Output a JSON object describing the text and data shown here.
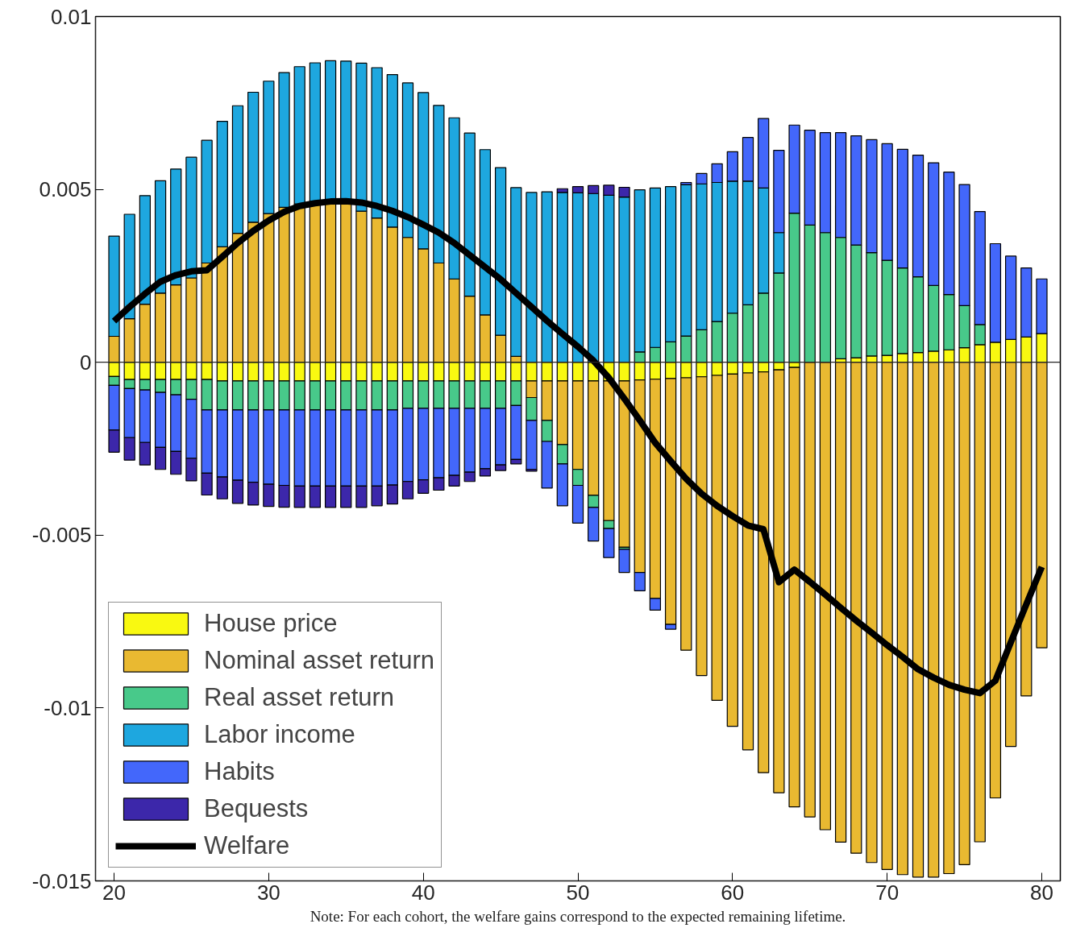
{
  "chart_data": {
    "type": "bar",
    "stacked": true,
    "x": [
      20,
      21,
      22,
      23,
      24,
      25,
      26,
      27,
      28,
      29,
      30,
      31,
      32,
      33,
      34,
      35,
      36,
      37,
      38,
      39,
      40,
      41,
      42,
      43,
      44,
      45,
      46,
      47,
      48,
      49,
      50,
      51,
      52,
      53,
      54,
      55,
      56,
      57,
      58,
      59,
      60,
      61,
      62,
      63,
      64,
      65,
      66,
      67,
      68,
      69,
      70,
      71,
      72,
      73,
      74,
      75,
      76,
      77,
      78,
      79,
      80
    ],
    "xlim": [
      18.8,
      81.2
    ],
    "xticks": [
      20,
      30,
      40,
      50,
      60,
      70,
      80
    ],
    "ylim": [
      -0.015,
      0.01
    ],
    "yticks": [
      -0.015,
      -0.01,
      -0.005,
      0,
      0.005,
      0.01
    ],
    "grid": false,
    "legend": "bottom left",
    "ref_lines": [
      {
        "axis": "y",
        "value": 0,
        "color": "#262626"
      }
    ],
    "annotations": [
      "Note: For each cohort, the welfare gains correspond to the expected remaining lifetime."
    ],
    "series": [
      {
        "name": "House price",
        "color": "#f9f911",
        "values": [
          -0.00041,
          -0.0005,
          -0.0005,
          -0.0005,
          -0.0005,
          -0.0005,
          -0.0005,
          -0.00054,
          -0.00054,
          -0.00054,
          -0.00054,
          -0.00054,
          -0.00054,
          -0.00054,
          -0.00054,
          -0.00054,
          -0.00054,
          -0.00054,
          -0.00054,
          -0.00054,
          -0.00054,
          -0.00054,
          -0.00054,
          -0.00054,
          -0.00054,
          -0.00054,
          -0.00054,
          -0.00054,
          -0.00054,
          -0.00054,
          -0.00054,
          -0.00054,
          -0.00054,
          -0.00054,
          -0.00051,
          -0.00049,
          -0.00047,
          -0.00045,
          -0.00042,
          -0.00038,
          -0.00034,
          -0.00031,
          -0.00028,
          -0.00022,
          -0.00015,
          null,
          null,
          0.0001,
          0.00013,
          0.00018,
          0.0002,
          0.00025,
          0.00028,
          0.00032,
          0.00036,
          0.00042,
          0.00051,
          0.00058,
          0.00066,
          0.00073,
          0.00083
        ]
      },
      {
        "name": "Nominal asset return",
        "color": "#e9b931",
        "values": [
          0.00075,
          0.00126,
          0.00168,
          0.002,
          0.00224,
          0.00244,
          0.00287,
          0.00334,
          0.00373,
          0.00405,
          0.0043,
          0.00448,
          0.00458,
          0.0046,
          0.00462,
          0.0046,
          0.00437,
          0.00417,
          0.00391,
          0.00361,
          0.00328,
          0.00287,
          0.00241,
          0.00191,
          0.00137,
          0.00078,
          0.00017,
          -0.00048,
          -0.00114,
          -0.00184,
          -0.00256,
          -0.00331,
          -0.00404,
          -0.00481,
          -0.00557,
          -0.00634,
          -0.00711,
          -0.00788,
          -0.00864,
          -0.0094,
          -0.01019,
          -0.0109,
          -0.01159,
          -0.01223,
          -0.01271,
          -0.01315,
          -0.01352,
          -0.01388,
          -0.0142,
          -0.01447,
          -0.01467,
          -0.01482,
          -0.01489,
          -0.01489,
          -0.01479,
          -0.01453,
          -0.01387,
          -0.0126,
          -0.01111,
          -0.00965,
          -0.00826
        ]
      },
      {
        "name": "Real asset return",
        "color": "#48c98a",
        "values": [
          -0.00026,
          -0.00026,
          -0.0003,
          -0.00037,
          -0.00044,
          -0.00057,
          -0.00088,
          -0.00084,
          -0.00084,
          -0.00084,
          -0.00084,
          -0.00084,
          -0.00084,
          -0.00084,
          -0.00084,
          -0.00084,
          -0.00084,
          -0.00084,
          -0.00084,
          -0.00079,
          -0.00079,
          -0.00079,
          -0.00079,
          -0.00079,
          -0.00079,
          -0.00079,
          -0.00071,
          -0.00066,
          -0.00061,
          -0.00056,
          -0.00046,
          -0.00035,
          -0.00023,
          -6e-05,
          0.0003,
          0.00043,
          0.00059,
          0.00076,
          0.00094,
          0.00118,
          0.00142,
          0.00166,
          0.002,
          0.00258,
          0.00431,
          0.00397,
          0.00375,
          0.00351,
          0.00326,
          0.00299,
          0.00275,
          0.00248,
          0.00219,
          0.0019,
          0.0016,
          0.00122,
          0.00058,
          0,
          0,
          0,
          0
        ]
      },
      {
        "name": "Labor income",
        "color": "#1ea7df",
        "values": [
          0.0029,
          0.00302,
          0.00314,
          0.00325,
          0.00335,
          0.00349,
          0.00355,
          0.00363,
          0.00369,
          0.00376,
          0.00383,
          0.0039,
          0.00397,
          0.00406,
          0.0041,
          0.00411,
          0.00428,
          0.00435,
          0.00441,
          0.00447,
          0.00452,
          0.00456,
          0.00466,
          0.00472,
          0.00478,
          0.00485,
          0.00488,
          0.00491,
          0.00493,
          0.00491,
          0.0049,
          0.00488,
          0.00483,
          0.00478,
          0.00469,
          0.00461,
          0.00449,
          0.00438,
          0.00422,
          0.00402,
          0.00382,
          0.00358,
          0.00304,
          0.00117,
          0,
          0,
          0,
          0,
          0,
          0,
          0,
          0,
          0,
          0,
          0,
          0,
          0,
          0,
          0,
          0,
          0
        ]
      },
      {
        "name": "Habits",
        "color": "#4367fb",
        "values": [
          -0.00129,
          -0.00142,
          -0.00152,
          -0.00159,
          -0.00164,
          -0.00171,
          -0.00183,
          -0.00194,
          -0.00203,
          -0.00209,
          -0.00215,
          -0.00218,
          -0.0022,
          -0.0022,
          -0.0022,
          -0.0022,
          -0.0022,
          -0.0022,
          -0.00217,
          -0.00212,
          -0.00207,
          -0.00201,
          -0.00194,
          -0.00185,
          -0.00175,
          -0.00164,
          -0.00156,
          -0.00142,
          -0.00135,
          -0.00121,
          -0.00109,
          -0.00097,
          -0.00084,
          -0.00067,
          -0.00053,
          -0.00034,
          -0.00014,
          6e-05,
          0.0003,
          0.00054,
          0.00085,
          0.00126,
          0.00201,
          0.00238,
          0.00255,
          0.00274,
          0.00289,
          0.00303,
          0.00316,
          0.00327,
          0.00337,
          0.00343,
          0.00352,
          0.00355,
          0.00354,
          0.0035,
          0.00327,
          0.00285,
          0.00241,
          0.002,
          0.00158
        ]
      },
      {
        "name": "Bequests",
        "color": "#3c27aa",
        "values": [
          -0.00064,
          -0.00065,
          -0.00065,
          -0.00064,
          -0.00066,
          -0.00065,
          -0.00063,
          -0.00063,
          -0.00067,
          -0.00066,
          -0.00064,
          -0.00063,
          -0.00062,
          -0.00062,
          -0.00062,
          -0.00062,
          -0.00062,
          -0.00057,
          -0.00055,
          -0.0005,
          -0.00039,
          -0.00036,
          -0.00031,
          -0.00027,
          -0.00021,
          -0.00016,
          -0.00013,
          -5e-05,
          0,
          0.00011,
          0.00018,
          0.00023,
          0.00029,
          0.00028,
          0,
          0,
          0,
          0,
          0,
          0,
          0,
          0,
          0,
          0,
          0,
          0,
          0,
          0,
          0,
          0,
          0,
          0,
          0,
          0,
          0,
          0,
          0,
          0,
          0,
          0,
          0
        ]
      },
      {
        "name": "Welfare",
        "color": "#000000",
        "type": "line",
        "line_style": "solid",
        "values": [
          0.00119,
          0.0016,
          0.00198,
          0.00233,
          0.00252,
          0.00263,
          0.00266,
          0.00305,
          0.00345,
          0.0038,
          0.0041,
          0.00435,
          0.00452,
          0.0046,
          0.00465,
          0.00466,
          0.00462,
          0.00452,
          0.00438,
          0.0042,
          0.00398,
          0.00375,
          0.00345,
          0.0031,
          0.00275,
          0.0024,
          0.002,
          0.0016,
          0.0012,
          0.00082,
          0.00045,
          5e-05,
          -0.00045,
          -0.00105,
          -0.00168,
          -0.00233,
          -0.00286,
          -0.00337,
          -0.0038,
          -0.00415,
          -0.00445,
          -0.00472,
          -0.00483,
          -0.00636,
          -0.006,
          -0.00635,
          -0.00672,
          -0.0071,
          -0.00747,
          -0.00782,
          -0.00818,
          -0.00852,
          -0.00888,
          -0.00912,
          -0.00933,
          -0.00947,
          -0.00957,
          -0.00921,
          -0.0081,
          -0.007,
          -0.00592
        ]
      }
    ]
  }
}
